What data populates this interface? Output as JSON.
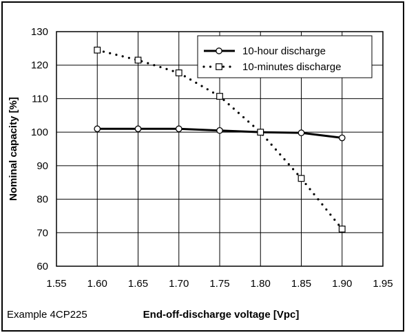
{
  "chart_data": {
    "type": "line",
    "xlabel": "End-off-discharge voltage [Vpc]",
    "ylabel": "Nominal capacity [%]",
    "xlim": [
      1.55,
      1.95
    ],
    "ylim": [
      60,
      130
    ],
    "x_ticks": [
      "1.55",
      "1.60",
      "1.65",
      "1.70",
      "1.75",
      "1.80",
      "1.85",
      "1.90",
      "1.95"
    ],
    "y_ticks": [
      "60",
      "70",
      "80",
      "90",
      "100",
      "110",
      "120",
      "130"
    ],
    "grid": true,
    "legend_position": "top-right",
    "series": [
      {
        "name": "10-hour discharge",
        "marker": "circle",
        "line_style": "solid",
        "color": "#000000",
        "x": [
          1.6,
          1.65,
          1.7,
          1.75,
          1.8,
          1.85,
          1.9
        ],
        "y": [
          101,
          101,
          101,
          100.5,
          100,
          99.8,
          98.3
        ]
      },
      {
        "name": "10-minutes discharge",
        "marker": "square",
        "line_style": "dotted",
        "color": "#000000",
        "x": [
          1.6,
          1.65,
          1.7,
          1.75,
          1.8,
          1.85,
          1.9
        ],
        "y": [
          124.5,
          121.5,
          117.7,
          110.7,
          100,
          86.2,
          71.1
        ]
      }
    ]
  },
  "footnote": "Example 4CP225"
}
